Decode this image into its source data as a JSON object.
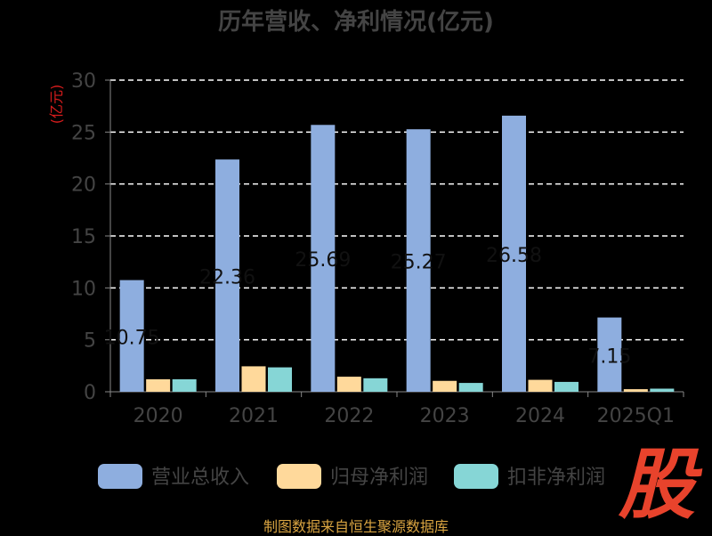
{
  "chart_data": {
    "type": "bar",
    "title": "历年营收、净利情况(亿元)",
    "ylabel": "(亿元)",
    "xlabel": "",
    "categories": [
      "2020",
      "2021",
      "2022",
      "2023",
      "2024",
      "2025Q1"
    ],
    "ylim": [
      0,
      30
    ],
    "yticks": [
      "0",
      "5",
      "10",
      "15",
      "20",
      "25",
      "30"
    ],
    "grid": true,
    "legend": "bottom",
    "series": [
      {
        "name": "营业总收入",
        "color": "#8eaedf",
        "values": [
          10.75,
          22.36,
          25.69,
          25.27,
          26.58,
          7.15
        ],
        "labels": [
          "10.75",
          "22.36",
          "25.69",
          "25.27",
          "26.58",
          "7.15"
        ]
      },
      {
        "name": "归母净利润",
        "color": "#ffd99b",
        "values": [
          1.2,
          2.45,
          1.45,
          1.05,
          1.15,
          0.25
        ]
      },
      {
        "name": "扣非净利润",
        "color": "#86d6d6",
        "values": [
          1.2,
          2.35,
          1.3,
          0.85,
          0.95,
          0.3
        ]
      }
    ]
  },
  "source_text": "制图数据来自恒生聚源数据库",
  "logo_text": "股"
}
